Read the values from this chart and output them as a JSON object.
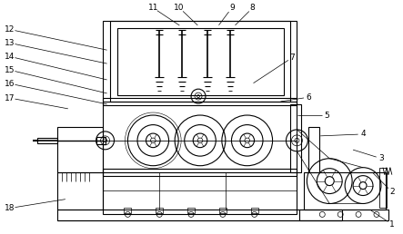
{
  "background_color": "#ffffff",
  "line_color": "#000000",
  "figure_width": 4.43,
  "figure_height": 2.58,
  "dpi": 100,
  "label_data": [
    [
      "1",
      432,
      248,
      408,
      232
    ],
    [
      "2",
      432,
      212,
      410,
      190
    ],
    [
      "3",
      420,
      175,
      388,
      165
    ],
    [
      "4",
      400,
      148,
      352,
      150
    ],
    [
      "5",
      360,
      127,
      327,
      127
    ],
    [
      "6",
      340,
      107,
      308,
      112
    ],
    [
      "7",
      322,
      63,
      278,
      92
    ],
    [
      "8",
      278,
      8,
      258,
      28
    ],
    [
      "9",
      255,
      8,
      240,
      28
    ],
    [
      "10",
      197,
      8,
      218,
      28
    ],
    [
      "11",
      168,
      8,
      198,
      28
    ],
    [
      "12",
      10,
      32,
      118,
      55
    ],
    [
      "13",
      10,
      47,
      118,
      70
    ],
    [
      "14",
      10,
      62,
      118,
      88
    ],
    [
      "15",
      10,
      77,
      118,
      103
    ],
    [
      "16",
      10,
      92,
      118,
      115
    ],
    [
      "17",
      10,
      108,
      75,
      120
    ],
    [
      "18",
      10,
      230,
      72,
      220
    ]
  ]
}
